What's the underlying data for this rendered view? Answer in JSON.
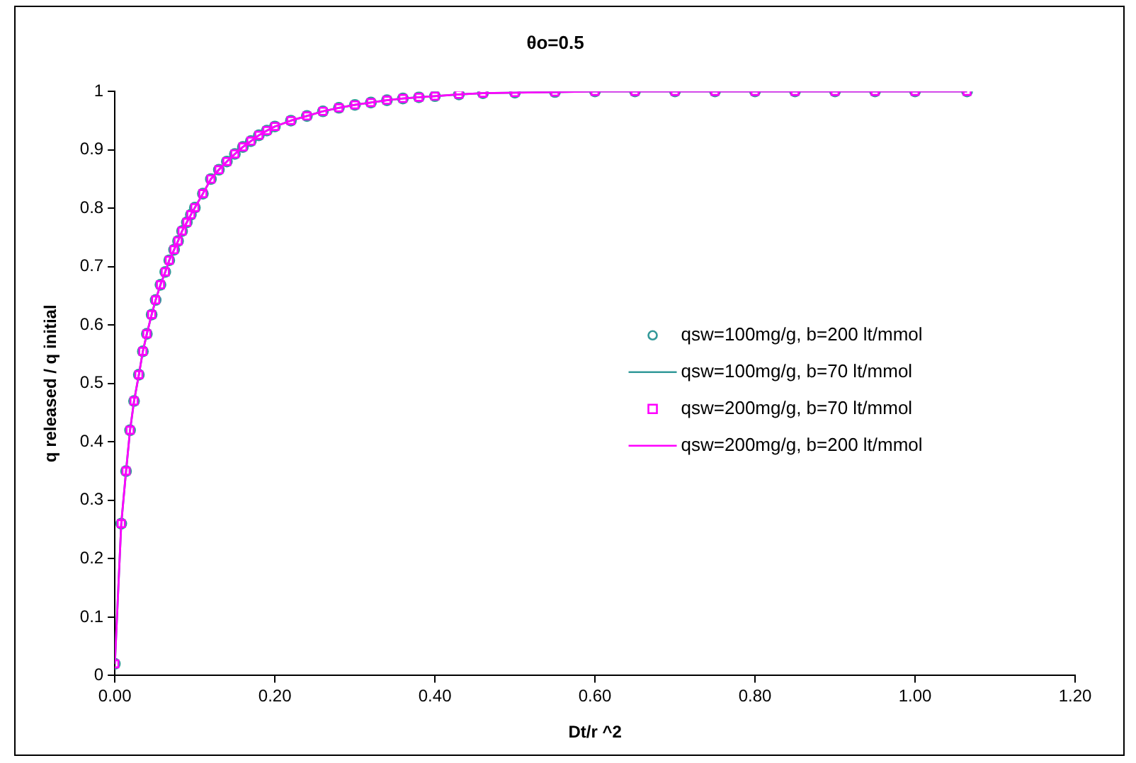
{
  "chart_data": {
    "type": "scatter",
    "title": "θo=0.5",
    "xlabel": "Dt/r ^2",
    "ylabel": "q released / q initial",
    "x": [
      0,
      0.008,
      0.014,
      0.019,
      0.024,
      0.03,
      0.035,
      0.04,
      0.046,
      0.051,
      0.057,
      0.063,
      0.068,
      0.074,
      0.079,
      0.084,
      0.09,
      0.095,
      0.1,
      0.11,
      0.12,
      0.13,
      0.14,
      0.15,
      0.16,
      0.17,
      0.18,
      0.19,
      0.2,
      0.22,
      0.24,
      0.26,
      0.28,
      0.3,
      0.32,
      0.34,
      0.36,
      0.38,
      0.4,
      0.43,
      0.46,
      0.5,
      0.55,
      0.6,
      0.65,
      0.7,
      0.75,
      0.8,
      0.85,
      0.9,
      0.95,
      1.0,
      1.065
    ],
    "series": [
      {
        "name": "qsw=100mg/g, b=200 lt/mmol",
        "marker": "circle",
        "color": "#339999",
        "values": [
          0.02,
          0.26,
          0.35,
          0.42,
          0.47,
          0.515,
          0.555,
          0.585,
          0.618,
          0.643,
          0.669,
          0.691,
          0.711,
          0.729,
          0.744,
          0.761,
          0.776,
          0.789,
          0.801,
          0.825,
          0.85,
          0.866,
          0.88,
          0.893,
          0.905,
          0.915,
          0.925,
          0.933,
          0.94,
          0.95,
          0.958,
          0.966,
          0.972,
          0.977,
          0.981,
          0.985,
          0.988,
          0.99,
          0.992,
          0.995,
          0.997,
          0.998,
          0.999,
          1,
          1,
          1,
          1,
          1,
          1,
          1,
          1,
          1,
          1
        ]
      },
      {
        "name": "qsw=100mg/g, b=70 lt/mmol",
        "type": "line",
        "marker": "none",
        "line_style": "solid",
        "color": "#339999",
        "values": [
          0.02,
          0.26,
          0.35,
          0.42,
          0.47,
          0.515,
          0.555,
          0.585,
          0.618,
          0.643,
          0.669,
          0.691,
          0.711,
          0.729,
          0.744,
          0.761,
          0.776,
          0.789,
          0.801,
          0.825,
          0.85,
          0.866,
          0.88,
          0.893,
          0.905,
          0.915,
          0.925,
          0.933,
          0.94,
          0.95,
          0.958,
          0.966,
          0.972,
          0.977,
          0.981,
          0.985,
          0.988,
          0.99,
          0.992,
          0.995,
          0.997,
          0.998,
          0.999,
          1,
          1,
          1,
          1,
          1,
          1,
          1,
          1,
          1,
          1
        ]
      },
      {
        "name": "qsw=200mg/g, b=70 lt/mmol",
        "marker": "square",
        "color": "#ff00ff",
        "values": [
          0.02,
          0.26,
          0.35,
          0.42,
          0.47,
          0.515,
          0.555,
          0.585,
          0.618,
          0.643,
          0.669,
          0.691,
          0.711,
          0.729,
          0.744,
          0.761,
          0.776,
          0.789,
          0.801,
          0.825,
          0.85,
          0.866,
          0.88,
          0.893,
          0.905,
          0.915,
          0.925,
          0.933,
          0.94,
          0.95,
          0.958,
          0.966,
          0.972,
          0.977,
          0.981,
          0.985,
          0.988,
          0.99,
          0.992,
          0.995,
          0.997,
          0.998,
          0.999,
          1,
          1,
          1,
          1,
          1,
          1,
          1,
          1,
          1,
          1
        ]
      },
      {
        "name": "qsw=200mg/g, b=200 lt/mmol",
        "type": "line",
        "marker": "none",
        "line_style": "solid",
        "color": "#ff00ff",
        "values": [
          0.02,
          0.26,
          0.35,
          0.42,
          0.47,
          0.515,
          0.555,
          0.585,
          0.618,
          0.643,
          0.669,
          0.691,
          0.711,
          0.729,
          0.744,
          0.761,
          0.776,
          0.789,
          0.801,
          0.825,
          0.85,
          0.866,
          0.88,
          0.893,
          0.905,
          0.915,
          0.925,
          0.933,
          0.94,
          0.95,
          0.958,
          0.966,
          0.972,
          0.977,
          0.981,
          0.985,
          0.988,
          0.99,
          0.992,
          0.995,
          0.997,
          0.998,
          0.999,
          1,
          1,
          1,
          1,
          1,
          1,
          1,
          1,
          1,
          1
        ]
      }
    ],
    "xlim": [
      0,
      1.2
    ],
    "xticks": [
      {
        "value": 0,
        "label": "0.00"
      },
      {
        "value": 0.2,
        "label": "0.20"
      },
      {
        "value": 0.4,
        "label": "0.40"
      },
      {
        "value": 0.6,
        "label": "0.60"
      },
      {
        "value": 0.8,
        "label": "0.80"
      },
      {
        "value": 1,
        "label": "1.00"
      },
      {
        "value": 1.2,
        "label": "1.20"
      }
    ],
    "ylim": [
      0,
      1
    ],
    "yticks": [
      0,
      0.1,
      0.2,
      0.3,
      0.4,
      0.5,
      0.6,
      0.7,
      0.8,
      0.9,
      1
    ],
    "grid": false,
    "legend": "right"
  }
}
